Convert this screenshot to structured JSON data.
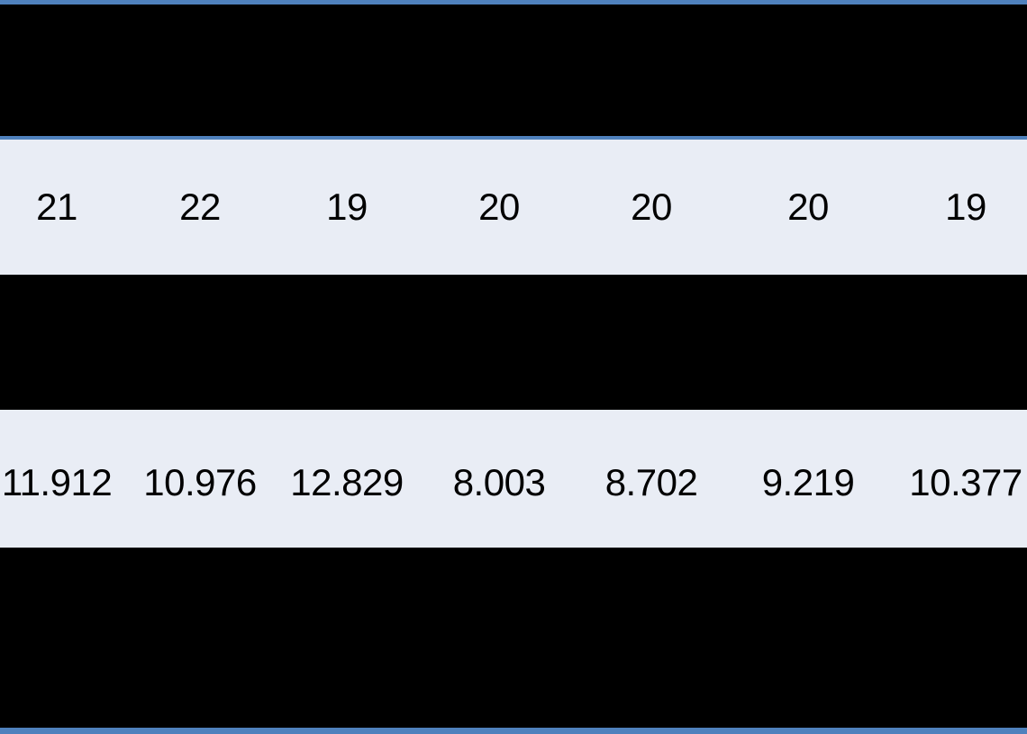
{
  "table": {
    "rows": [
      {
        "values": [
          "21",
          "22",
          "19",
          "20",
          "20",
          "20",
          "19"
        ]
      },
      {
        "values": [
          "11.912",
          "10.976",
          "12.829",
          "8.003",
          "8.702",
          "9.219",
          "10.377"
        ]
      }
    ],
    "colors": {
      "border_blue": "#4F81BD",
      "row_background": "#E9EDF5",
      "redacted_black": "#000000",
      "text": "#000000"
    }
  }
}
